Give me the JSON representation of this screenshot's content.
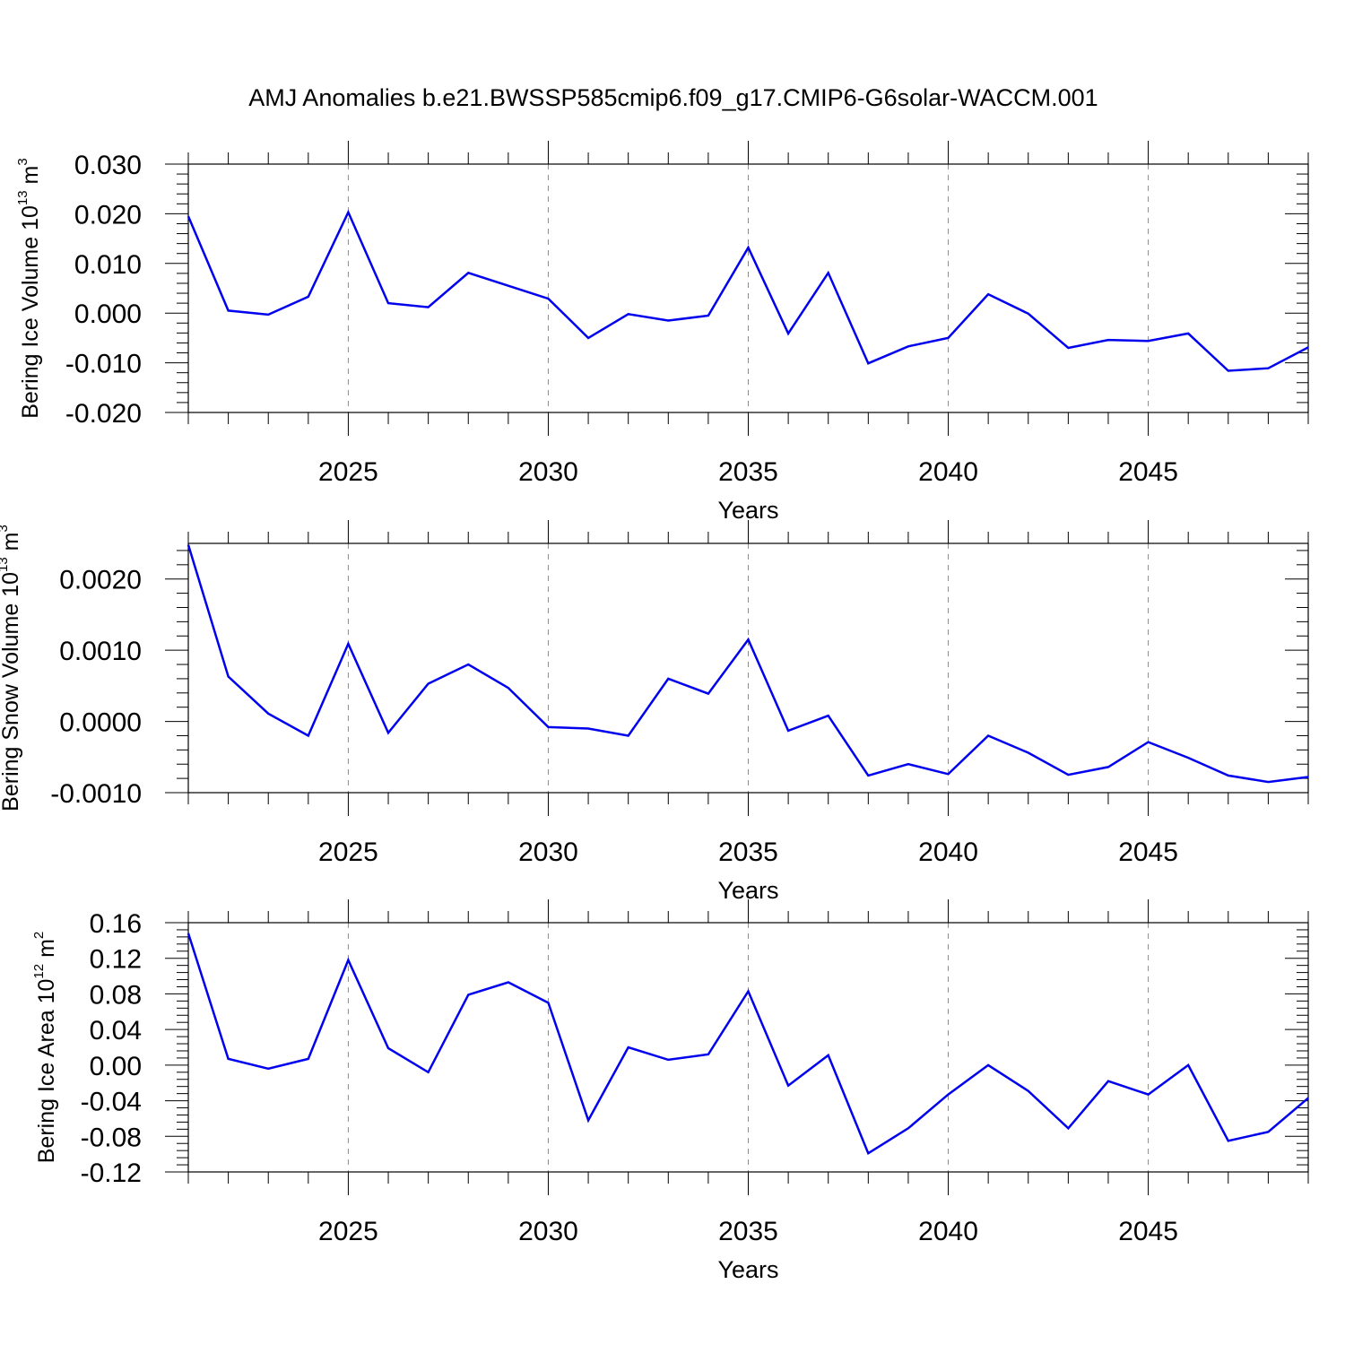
{
  "title": "AMJ Anomalies b.e21.BWSSP585cmip6.f09_g17.CMIP6-G6solar-WACCM.001",
  "colors": {
    "line": "#0000ee",
    "axis": "#000000",
    "grid": "#8c8c8c"
  },
  "chart_data": [
    {
      "type": "line",
      "ylabel": {
        "text": "Bering Ice Volume 10",
        "sup": "13",
        "unit": " m",
        "unit_sup": "3"
      },
      "xlabel": "Years",
      "xlim": [
        2021,
        2049
      ],
      "ylim": [
        -0.02,
        0.03
      ],
      "yticks": [
        0.03,
        0.02,
        0.01,
        0.0,
        -0.01,
        -0.02
      ],
      "ytick_labels": [
        "0.030",
        "0.020",
        "0.010",
        "0.000",
        "-0.010",
        "-0.020"
      ],
      "xticks": [
        2025,
        2030,
        2035,
        2040,
        2045
      ],
      "xtick_labels": [
        "2025",
        "2030",
        "2035",
        "2040",
        "2045"
      ],
      "grid": "vertical dashed at major x ticks",
      "series": [
        {
          "x": [
            2021,
            2022,
            2023,
            2024,
            2025,
            2026,
            2027,
            2028,
            2029,
            2030,
            2031,
            2032,
            2033,
            2034,
            2035,
            2036,
            2037,
            2038,
            2039,
            2040,
            2041,
            2042,
            2043,
            2044,
            2045,
            2046,
            2047,
            2048,
            2049
          ],
          "values": [
            0.0195,
            0.0005,
            -0.0003,
            0.0033,
            0.0203,
            0.002,
            0.0012,
            0.0081,
            0.0055,
            0.0029,
            -0.005,
            -0.0002,
            -0.0015,
            -0.0005,
            0.0132,
            -0.0041,
            0.0081,
            -0.0101,
            -0.0067,
            -0.005,
            0.0038,
            -0.0001,
            -0.007,
            -0.0054,
            -0.0056,
            -0.0041,
            -0.0116,
            -0.0111,
            -0.0069
          ]
        }
      ]
    },
    {
      "type": "line",
      "ylabel": {
        "text": "Bering Snow Volume 10",
        "sup": "13",
        "unit": " m",
        "unit_sup": "3"
      },
      "xlabel": "Years",
      "xlim": [
        2021,
        2049
      ],
      "ylim": [
        -0.001,
        0.0025
      ],
      "yticks": [
        0.002,
        0.001,
        0.0,
        -0.001
      ],
      "ytick_labels": [
        "0.0020",
        "0.0010",
        "0.0000",
        "-0.0010"
      ],
      "xticks": [
        2025,
        2030,
        2035,
        2040,
        2045
      ],
      "xtick_labels": [
        "2025",
        "2030",
        "2035",
        "2040",
        "2045"
      ],
      "grid": "vertical dashed at major x ticks",
      "series": [
        {
          "x": [
            2021,
            2022,
            2023,
            2024,
            2025,
            2026,
            2027,
            2028,
            2029,
            2030,
            2031,
            2032,
            2033,
            2034,
            2035,
            2036,
            2037,
            2038,
            2039,
            2040,
            2041,
            2042,
            2043,
            2044,
            2045,
            2046,
            2047,
            2048,
            2049
          ],
          "values": [
            0.00248,
            0.00063,
            0.00011,
            -0.0002,
            0.00109,
            -0.00016,
            0.00053,
            0.0008,
            0.00047,
            -8e-05,
            -0.0001,
            -0.0002,
            0.0006,
            0.00039,
            0.00115,
            -0.00013,
            8e-05,
            -0.00076,
            -0.0006,
            -0.00074,
            -0.0002,
            -0.00044,
            -0.00075,
            -0.00064,
            -0.00029,
            -0.00051,
            -0.00076,
            -0.00085,
            -0.00078
          ]
        }
      ]
    },
    {
      "type": "line",
      "ylabel": {
        "text": "Bering Ice Area 10",
        "sup": "12",
        "unit": " m",
        "unit_sup": "2"
      },
      "xlabel": "Years",
      "xlim": [
        2021,
        2049
      ],
      "ylim": [
        -0.12,
        0.16
      ],
      "yticks": [
        0.16,
        0.12,
        0.08,
        0.04,
        0.0,
        -0.04,
        -0.08,
        -0.12
      ],
      "ytick_labels": [
        "0.16",
        "0.12",
        "0.08",
        "0.04",
        "0.00",
        "-0.04",
        "-0.08",
        "-0.12"
      ],
      "xticks": [
        2025,
        2030,
        2035,
        2040,
        2045
      ],
      "xtick_labels": [
        "2025",
        "2030",
        "2035",
        "2040",
        "2045"
      ],
      "grid": "vertical dashed at major x ticks",
      "series": [
        {
          "x": [
            2021,
            2022,
            2023,
            2024,
            2025,
            2026,
            2027,
            2028,
            2029,
            2030,
            2031,
            2032,
            2033,
            2034,
            2035,
            2036,
            2037,
            2038,
            2039,
            2040,
            2041,
            2042,
            2043,
            2044,
            2045,
            2046,
            2047,
            2048,
            2049
          ],
          "values": [
            0.148,
            0.007,
            -0.004,
            0.007,
            0.118,
            0.019,
            -0.008,
            0.079,
            0.093,
            0.07,
            -0.062,
            0.02,
            0.006,
            0.012,
            0.083,
            -0.023,
            0.011,
            -0.099,
            -0.071,
            -0.033,
            0.0,
            -0.029,
            -0.071,
            -0.018,
            -0.033,
            0.0,
            -0.085,
            -0.075,
            -0.037
          ]
        }
      ]
    }
  ]
}
